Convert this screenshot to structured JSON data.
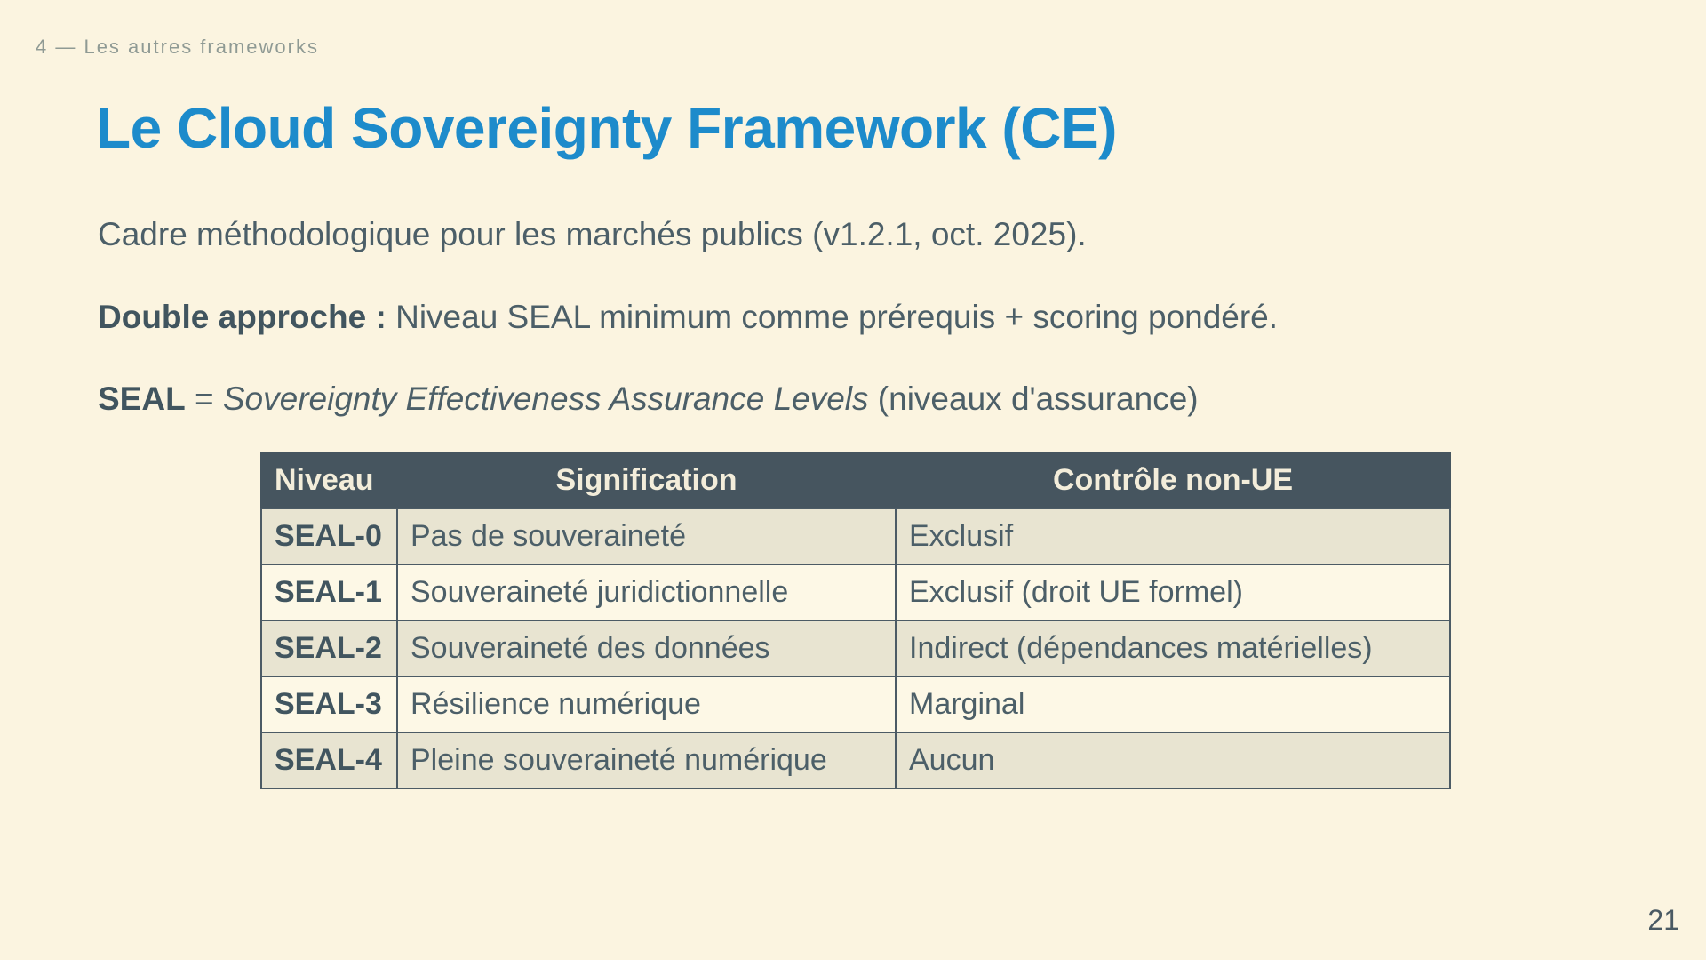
{
  "slide": {
    "section_label": "4 — Les autres frameworks",
    "title": "Le Cloud Sovereignty Framework (CE)",
    "paragraph_1": "Cadre méthodologique pour les marchés publics (v1.2.1, oct. 2025).",
    "paragraph_2_bold": "Double approche :",
    "paragraph_2_rest": " Niveau SEAL minimum comme prérequis + scoring pondéré.",
    "paragraph_3_bold": "SEAL",
    "paragraph_3_eq": " = ",
    "paragraph_3_italic": "Sovereignty Effectiveness Assurance Levels",
    "paragraph_3_rest": " (niveaux d'assurance)",
    "page_number": "21"
  },
  "table": {
    "headers": [
      "Niveau",
      "Signification",
      "Contrôle non-UE"
    ],
    "rows": [
      [
        "SEAL-0",
        "Pas de souveraineté",
        "Exclusif"
      ],
      [
        "SEAL-1",
        "Souveraineté juridictionnelle",
        "Exclusif (droit UE formel)"
      ],
      [
        "SEAL-2",
        "Souveraineté des données",
        "Indirect (dépendances matérielles)"
      ],
      [
        "SEAL-3",
        "Résilience numérique",
        "Marginal"
      ],
      [
        "SEAL-4",
        "Pleine souveraineté numérique",
        "Aucun"
      ]
    ]
  },
  "colors": {
    "page_background": "#fbf4e0",
    "title_blue": "#1d8bcb",
    "body_text": "#4c5f68",
    "section_label_gray": "#8f9a94",
    "table_header_background": "#46555f",
    "table_header_text": "#f3edda",
    "table_row_odd": "#e8e4d1",
    "table_row_even": "#fdf8e6",
    "table_border": "#4c5b65"
  }
}
